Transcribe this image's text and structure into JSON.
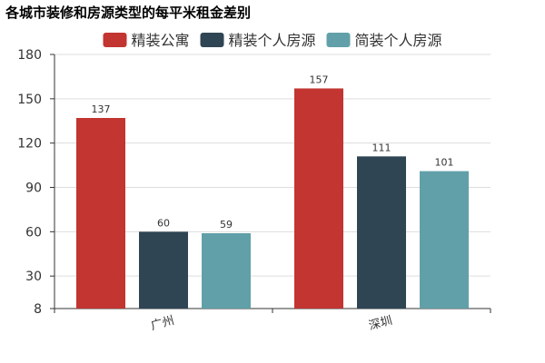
{
  "chart_data": {
    "type": "bar",
    "title": "各城市装修和房源类型的每平米租金差别",
    "categories": [
      "广州",
      "深圳"
    ],
    "series": [
      {
        "name": "精装公寓",
        "values": [
          137,
          157
        ],
        "color": "#c23531"
      },
      {
        "name": "精装个人房源",
        "values": [
          60,
          111
        ],
        "color": "#2f4554"
      },
      {
        "name": "简装个人房源",
        "values": [
          59,
          101
        ],
        "color": "#61a0a8"
      }
    ],
    "ylim": [
      8,
      180
    ],
    "yticks": [
      8,
      30,
      60,
      90,
      120,
      150,
      180
    ],
    "grid": true,
    "legend_position": "top-center",
    "xlabel": "",
    "ylabel": ""
  }
}
